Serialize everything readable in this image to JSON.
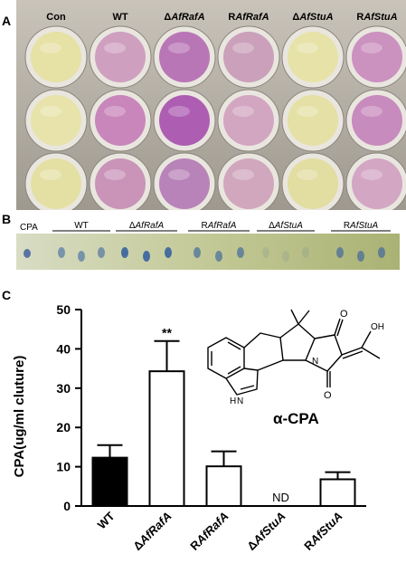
{
  "panel_a": {
    "letter": "A",
    "columns": [
      {
        "base": "Con",
        "italic": ""
      },
      {
        "base": "WT",
        "italic": ""
      },
      {
        "base": "Δ",
        "italic": "AfRafA"
      },
      {
        "base": "R",
        "italic": "AfRafA"
      },
      {
        "base": "Δ",
        "italic": "AfStuA"
      },
      {
        "base": "R",
        "italic": "AfStuA"
      }
    ],
    "well_colors": [
      [
        "#e6e1a4",
        "#cf9fc0",
        "#b976b6",
        "#caa0ba",
        "#e7e2a8",
        "#cb91bf"
      ],
      [
        "#e7e3aa",
        "#c886ba",
        "#ad5db2",
        "#d2a6c0",
        "#e5e0a5",
        "#c88bbd"
      ],
      [
        "#e4e0a4",
        "#c994b8",
        "#b883b8",
        "#d1a7bd",
        "#e2dda0",
        "#d3a6c4"
      ]
    ]
  },
  "panel_b": {
    "letter": "B",
    "cpa_label": "CPA",
    "groups": [
      {
        "base": "WT",
        "italic": ""
      },
      {
        "base": "Δ",
        "italic": "AfRafA"
      },
      {
        "base": "R",
        "italic": "AfRafA"
      },
      {
        "base": "Δ",
        "italic": "AfStuA"
      },
      {
        "base": "R",
        "italic": "AfStuA"
      }
    ]
  },
  "panel_c": {
    "letter": "C",
    "compound_label": "α-CPA",
    "nh_label": "H",
    "n_label": "N",
    "oh_label": "OH",
    "nd_label": "ND",
    "significance": "**"
  },
  "chart_data": {
    "type": "bar",
    "ylabel": "CPA(ug/ml cluture)",
    "xlabel": "",
    "ylim": [
      0,
      50
    ],
    "yticks": [
      0,
      10,
      20,
      30,
      40,
      50
    ],
    "categories": [
      {
        "base": "WT",
        "italic": ""
      },
      {
        "base": "Δ",
        "italic": "AfRafA"
      },
      {
        "base": "R",
        "italic": "AfRafA"
      },
      {
        "base": "Δ",
        "italic": "AfStuA"
      },
      {
        "base": "R",
        "italic": "AfStuA"
      }
    ],
    "values": [
      12.3,
      34.3,
      10.1,
      0,
      6.8
    ],
    "errors": [
      3.2,
      7.7,
      3.8,
      0,
      1.8
    ],
    "fill": [
      "#000000",
      "#ffffff",
      "#ffffff",
      "#ffffff",
      "#ffffff"
    ]
  }
}
